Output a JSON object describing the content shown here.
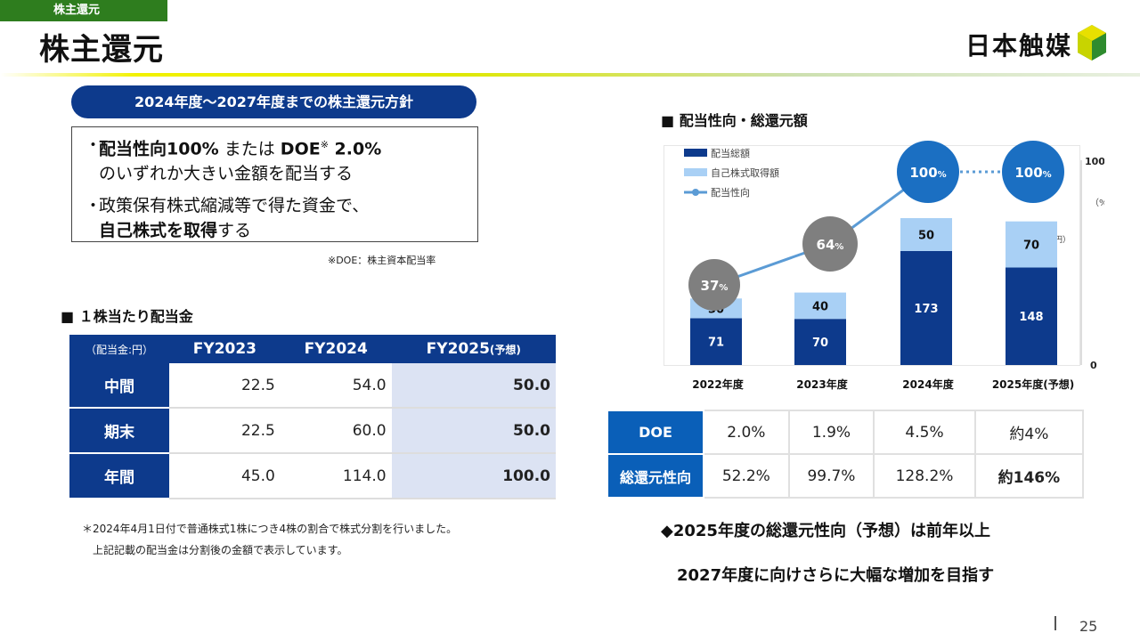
{
  "header": {
    "tag": "株主還元",
    "title": "株主還元",
    "logo_text": "日本触媒"
  },
  "policy": {
    "title": "2024年度〜2027年度までの株主還元方針",
    "bullet": "・",
    "item1_bold1": "配当性向100%",
    "item1_mid": " または ",
    "item1_bold2": "DOE",
    "item1_sup": "※",
    "item1_bold3": " 2.0%",
    "item1_line2": "のいずれか大きい金額を配当する",
    "item2_line1": "政策保有株式縮減等で得た資金で、",
    "item2_bold": "自己株式を取得",
    "item2_tail": "する",
    "note": "※DOE：株主資本配当率"
  },
  "dividend": {
    "section_title": "■ １株当たり配当金",
    "unit_header": "（配当金:円）",
    "col1": "FY2023",
    "col2": "FY2024",
    "col3": "FY2025",
    "col3_suffix": "(予想)",
    "rows": [
      {
        "label": "中間",
        "v1": "22.5",
        "v2": "54.0",
        "v3": "50.0"
      },
      {
        "label": "期末",
        "v1": "22.5",
        "v2": "60.0",
        "v3": "50.0"
      },
      {
        "label": "年間",
        "v1": "45.0",
        "v2": "114.0",
        "v3": "100.0"
      }
    ],
    "footnote1": "＊2024年4月1日付で普通株式1株につき4株の割合で株式分割を行いました。",
    "footnote2": "上記記載の配当金は分割後の金額で表示しています。"
  },
  "chart_section_title": "■ 配当性向・総還元額",
  "chart_data": {
    "type": "bar",
    "categories": [
      "2022年度",
      "2023年度",
      "2024年度",
      "2025年度(予想)"
    ],
    "series": [
      {
        "name": "配当総額",
        "values": [
          71,
          70,
          173,
          148
        ],
        "color": "#0d3a8c"
      },
      {
        "name": "自己株式取得額",
        "values": [
          30,
          40,
          50,
          70
        ],
        "color": "#a9d0f5"
      }
    ],
    "line_series": {
      "name": "配当性向",
      "values": [
        37,
        64,
        100,
        100
      ],
      "color": "#5b9bd5"
    },
    "payout_labels": [
      "37",
      "64",
      "100",
      "100"
    ],
    "payout_suffix": "%",
    "right_axis_top": "100",
    "right_axis_unit": "（%）",
    "amount_unit": "（億円）",
    "axis_zero": "0",
    "stacked": true,
    "ylim": [
      0,
      270
    ]
  },
  "returns_table": {
    "rows": [
      {
        "label": "DOE",
        "values": [
          "2.0%",
          "1.9%",
          "4.5%",
          "約4%"
        ]
      },
      {
        "label": "総還元性向",
        "values": [
          "52.2%",
          "99.7%",
          "128.2%",
          "約146%"
        ]
      }
    ]
  },
  "message": {
    "line1": "◆2025年度の総還元性向（予想）は前年以上",
    "line2": "2027年度に向けさらに大幅な増加を目指す"
  },
  "page_number": "25",
  "colors": {
    "navy": "#0d3a8c",
    "light_blue": "#a9d0f5",
    "line_blue": "#5b9bd5",
    "circle_blue": "#1b6fc2",
    "circle_gray": "#7f7f7f"
  }
}
